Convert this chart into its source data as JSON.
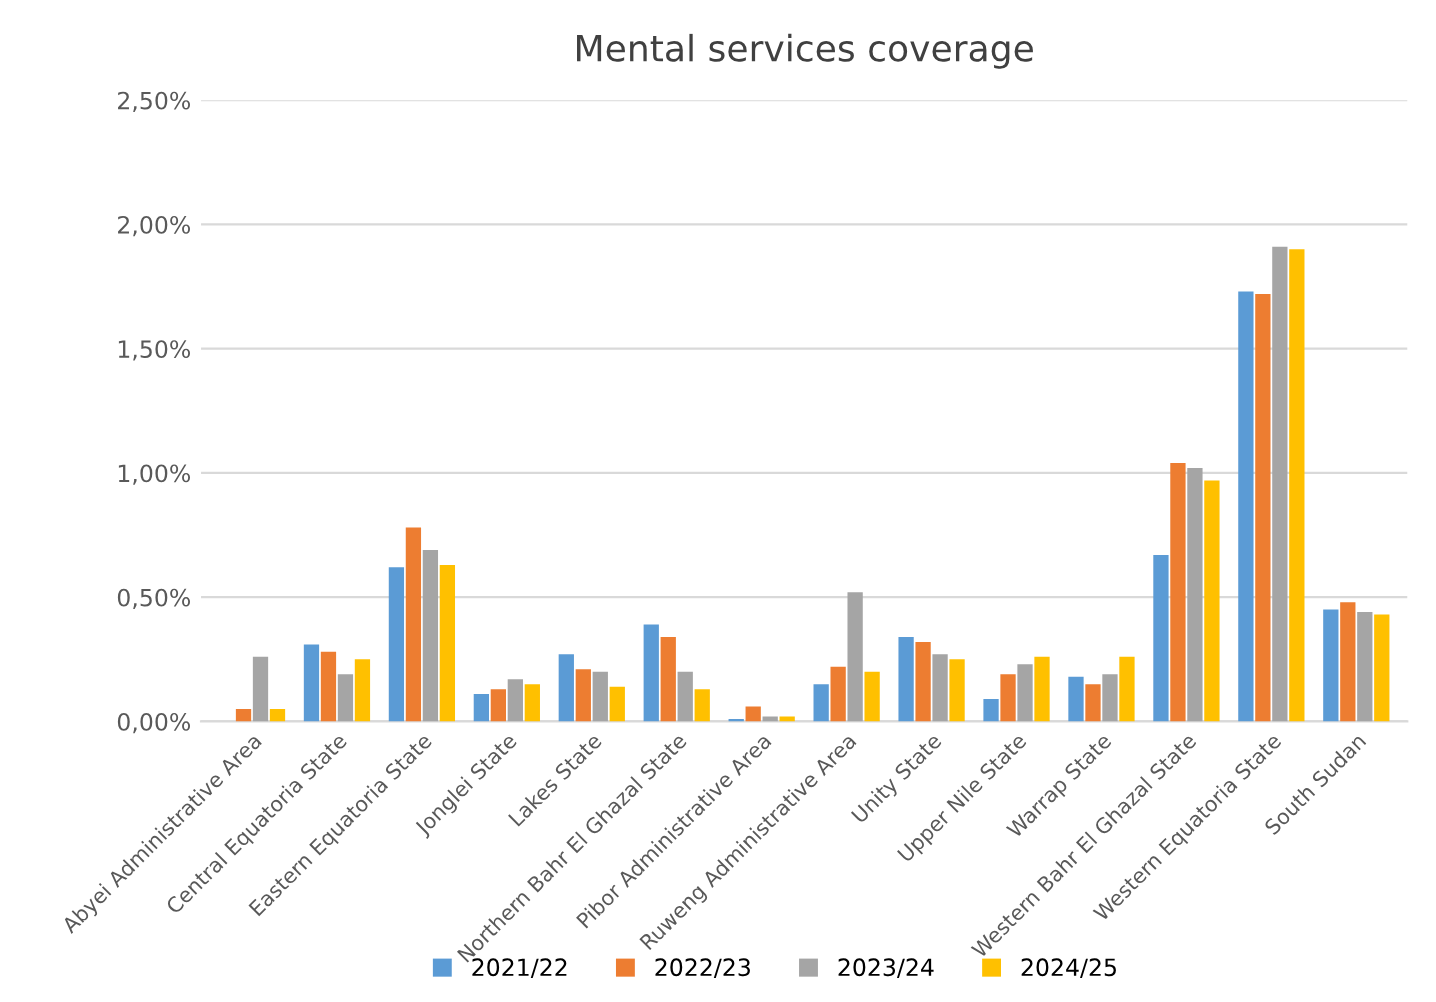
{
  "chart_data": {
    "type": "bar",
    "title": "Mental services coverage",
    "categories": [
      "Abyei Administrative Area",
      "Central Equatoria State",
      "Eastern Equatoria State",
      "Jonglei State",
      "Lakes State",
      "Northern Bahr El Ghazal State",
      "Pibor Administrative Area",
      "Ruweng Administrative Area",
      "Unity State",
      "Upper Nile State",
      "Warrap State",
      "Western Bahr El Ghazal State",
      "Western Equatoria State",
      "South Sudan"
    ],
    "series": [
      {
        "name": "2021/22",
        "color": "#5b9bd5",
        "values": [
          0,
          0.31,
          0.62,
          0.11,
          0.27,
          0.39,
          0.01,
          0.15,
          0.34,
          0.09,
          0.18,
          0.67,
          1.73,
          0.45
        ]
      },
      {
        "name": "2022/23",
        "color": "#ed7d31",
        "values": [
          0.05,
          0.28,
          0.78,
          0.13,
          0.21,
          0.34,
          0.06,
          0.22,
          0.32,
          0.19,
          0.15,
          1.04,
          1.72,
          0.48
        ]
      },
      {
        "name": "2023/24",
        "color": "#a5a5a5",
        "values": [
          0.26,
          0.19,
          0.69,
          0.17,
          0.2,
          0.2,
          0.02,
          0.52,
          0.27,
          0.23,
          0.19,
          1.02,
          1.91,
          0.44
        ]
      },
      {
        "name": "2024/25",
        "color": "#ffc000",
        "values": [
          0.05,
          0.25,
          0.63,
          0.15,
          0.14,
          0.13,
          0.02,
          0.2,
          0.25,
          0.26,
          0.26,
          0.97,
          1.9,
          0.43
        ]
      }
    ],
    "ylim": [
      0,
      2.5
    ],
    "yticks": [
      {
        "value": 0,
        "label": "0,00%"
      },
      {
        "value": 0.5,
        "label": "0,50%"
      },
      {
        "value": 1,
        "label": "1,00%"
      },
      {
        "value": 1.5,
        "label": "1,50%"
      },
      {
        "value": 2,
        "label": "2,00%"
      },
      {
        "value": 2.5,
        "label": "2,50%"
      }
    ],
    "grid": "y",
    "legend": "bottom"
  }
}
